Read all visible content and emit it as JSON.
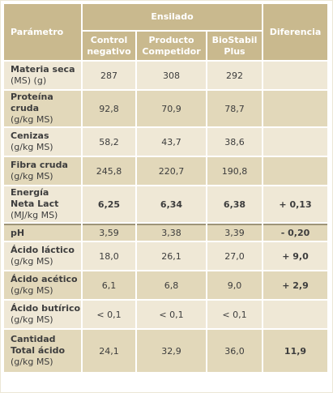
{
  "header": {
    "parametro": "Parámetro",
    "ensilado": "Ensilado",
    "diferencia": "Diferencia",
    "columns": [
      {
        "line1": "Control",
        "line2": "negativo"
      },
      {
        "line1": "Producto",
        "line2": "Competidor"
      },
      {
        "line1": "BioStabil",
        "line2": "Plus"
      }
    ]
  },
  "rows": [
    {
      "name": [
        "Materia seca"
      ],
      "unit": "(MS) (g)",
      "values": [
        "287",
        "308",
        "292"
      ],
      "diff": "",
      "bold": false
    },
    {
      "name": [
        "Proteína",
        "cruda"
      ],
      "unit": "(g/kg MS)",
      "values": [
        "92,8",
        "70,9",
        "78,7"
      ],
      "diff": "",
      "bold": false
    },
    {
      "name": [
        "Cenizas"
      ],
      "unit": "(g/kg MS)",
      "values": [
        "58,2",
        "43,7",
        "38,6"
      ],
      "diff": "",
      "bold": false
    },
    {
      "name": [
        "Fibra cruda"
      ],
      "unit": "(g/kg MS)",
      "values": [
        "245,8",
        "220,7",
        "190,8"
      ],
      "diff": "",
      "bold": false
    },
    {
      "name": [
        "Energía",
        "Neta Lact"
      ],
      "unit": "(MJ/kg MS)",
      "values": [
        "6,25",
        "6,34",
        "6,38"
      ],
      "diff": "+ 0,13",
      "bold": true
    },
    {
      "name": [
        "pH"
      ],
      "unit": "",
      "values": [
        "3,59",
        "3,38",
        "3,39"
      ],
      "diff": "- 0,20",
      "bold": false
    },
    {
      "name": [
        "Ácido láctico"
      ],
      "unit": "(g/kg MS)",
      "values": [
        "18,0",
        "26,1",
        "27,0"
      ],
      "diff": "+ 9,0",
      "bold": false
    },
    {
      "name": [
        "Ácido acético"
      ],
      "unit": "(g/kg MS)",
      "values": [
        "6,1",
        "6,8",
        "9,0"
      ],
      "diff": "+ 2,9",
      "bold": false
    },
    {
      "name": [
        "Ácido butírico"
      ],
      "unit": "(g/kg MS)",
      "values": [
        "< 0,1",
        "< 0,1",
        "< 0,1"
      ],
      "diff": "",
      "bold": false
    },
    {
      "name": [
        "Cantidad",
        "Total ácido"
      ],
      "unit": "(g/kg MS)",
      "values": [
        "24,1",
        "32,9",
        "36,0"
      ],
      "diff": "11,9",
      "bold": false
    }
  ]
}
